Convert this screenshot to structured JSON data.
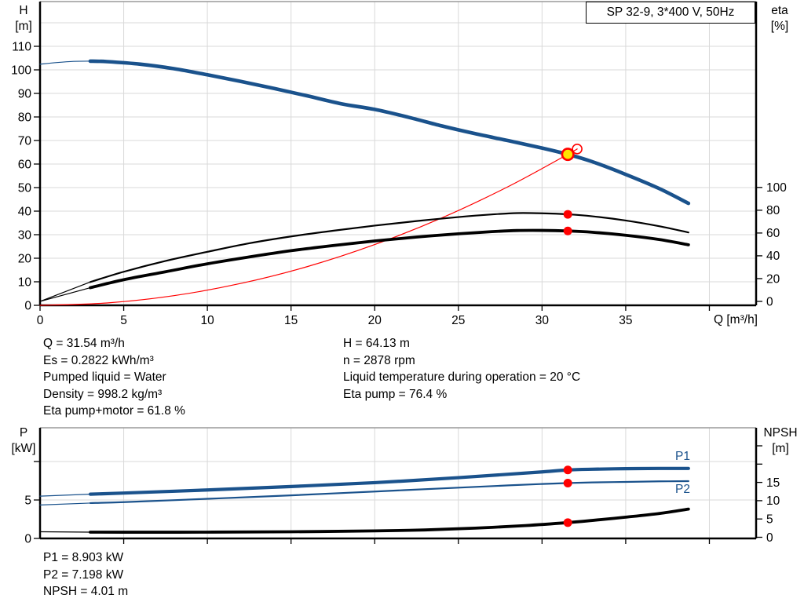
{
  "colors": {
    "curve_blue": "#1a528c",
    "black": "#000000",
    "red": "#ff0000",
    "yellow": "#ffe600",
    "grid": "#d9d9d9",
    "frame": "#9a9a9a"
  },
  "info_top": {
    "left": [
      "Q = 31.54 m³/h",
      "Es = 0.2822 kWh/m³",
      "Pumped liquid = Water",
      "Density = 998.2 kg/m³",
      "Eta pump+motor = 61.8 %"
    ],
    "right": [
      "H = 64.13 m",
      "n = 2878 rpm",
      "Liquid temperature during operation = 20 °C",
      "Eta pump = 76.4 %"
    ]
  },
  "info_bottom": [
    "P1 = 8.903 kW",
    "P2 = 7.198 kW",
    "NPSH = 4.01 m"
  ],
  "chart_data": [
    {
      "type": "line",
      "title": "SP 32-9, 3*400 V, 50Hz",
      "xlabel": "Q [m³/h]",
      "xlim": [
        0,
        42.8
      ],
      "x_ticks": [
        0,
        5,
        10,
        15,
        20,
        25,
        30,
        35,
        40
      ],
      "x_tick_labels": [
        0,
        5,
        10,
        15,
        20,
        25,
        30,
        35
      ],
      "left_axis": {
        "label": "H [m]",
        "label_lines": [
          "H",
          "[m]"
        ],
        "range": [
          0,
          129
        ],
        "ticks": [
          0,
          10,
          20,
          30,
          40,
          50,
          60,
          70,
          80,
          90,
          100,
          110
        ],
        "tick_labels": [
          0,
          10,
          20,
          30,
          40,
          50,
          60,
          70,
          80,
          90,
          100,
          110
        ]
      },
      "right_axis": {
        "label": "eta [%]",
        "label_lines": [
          "eta",
          "[%]"
        ],
        "range": [
          0,
          100
        ],
        "ticks": [
          0,
          20,
          40,
          60,
          80,
          100
        ],
        "tick_labels": [
          0,
          20,
          40,
          60,
          80,
          100
        ]
      },
      "series": [
        {
          "name": "system-curve",
          "label": "",
          "axis": "H",
          "color": "red",
          "width": 1.2,
          "points": [
            [
              0,
              0
            ],
            [
              4,
              1.0
            ],
            [
              8,
              4.1
            ],
            [
              12,
              9.3
            ],
            [
              16,
              16.5
            ],
            [
              20,
              25.8
            ],
            [
              24,
              37.1
            ],
            [
              28,
              50.5
            ],
            [
              31.54,
              64.13
            ],
            [
              32.1,
              66.4
            ]
          ]
        },
        {
          "name": "eta-pump",
          "label": "",
          "axis": "eta",
          "color": "black",
          "width": 2.2,
          "thin_below": 3,
          "points": [
            [
              0,
              0
            ],
            [
              3,
              17
            ],
            [
              5,
              26
            ],
            [
              7.5,
              35.5
            ],
            [
              10,
              43.5
            ],
            [
              12.5,
              51
            ],
            [
              15,
              57
            ],
            [
              17.5,
              62
            ],
            [
              20,
              66.5
            ],
            [
              22.5,
              70.5
            ],
            [
              25,
              74
            ],
            [
              27,
              76.3
            ],
            [
              28.5,
              77.5
            ],
            [
              30,
              77.3
            ],
            [
              31.54,
              76.4
            ],
            [
              33,
              74.7
            ],
            [
              35,
              71
            ],
            [
              37,
              66
            ],
            [
              38.75,
              60.5
            ]
          ]
        },
        {
          "name": "eta-pump-motor",
          "label": "",
          "axis": "eta",
          "color": "black",
          "width": 3.8,
          "thin_below": 3,
          "points": [
            [
              0,
              0
            ],
            [
              3,
              12
            ],
            [
              5,
              19
            ],
            [
              7.5,
              26
            ],
            [
              10,
              33
            ],
            [
              12.5,
              39
            ],
            [
              15,
              44.5
            ],
            [
              17.5,
              49
            ],
            [
              20,
              53
            ],
            [
              22.5,
              56.5
            ],
            [
              25,
              59.3
            ],
            [
              27,
              61.2
            ],
            [
              28.5,
              62.2
            ],
            [
              30,
              62.3
            ],
            [
              31.54,
              61.8
            ],
            [
              33,
              60.7
            ],
            [
              35,
              58
            ],
            [
              37,
              54.3
            ],
            [
              38.75,
              49.7
            ]
          ]
        },
        {
          "name": "head-curve",
          "label": "",
          "axis": "H",
          "color": "blue",
          "width": 4.6,
          "thin_below": 3,
          "points": [
            [
              0,
              102.4
            ],
            [
              1,
              103.1
            ],
            [
              2,
              103.6
            ],
            [
              3,
              103.7
            ],
            [
              4,
              103.5
            ],
            [
              6,
              102.4
            ],
            [
              8,
              100.5
            ],
            [
              10,
              97.9
            ],
            [
              12,
              95.1
            ],
            [
              14,
              92.1
            ],
            [
              16,
              88.9
            ],
            [
              18,
              85.6
            ],
            [
              20,
              83.2
            ],
            [
              22,
              79.9
            ],
            [
              24,
              76.2
            ],
            [
              26,
              72.9
            ],
            [
              28,
              69.9
            ],
            [
              30,
              66.8
            ],
            [
              31.54,
              64.13
            ],
            [
              33,
              61.0
            ],
            [
              35,
              55.6
            ],
            [
              37,
              49.6
            ],
            [
              38.75,
              43.3
            ]
          ]
        }
      ],
      "markers": [
        {
          "name": "duty-point-marker",
          "style": "yellow",
          "q": 31.54,
          "value": 64.13,
          "axis": "H"
        },
        {
          "name": "requested-duty-marker",
          "style": "open",
          "q": 32.1,
          "value": 66.4,
          "axis": "H"
        },
        {
          "name": "eta-pump-duty-dot",
          "style": "dot",
          "q": 31.54,
          "value": 76.4,
          "axis": "eta"
        },
        {
          "name": "eta-pump-motor-duty-dot",
          "style": "dot",
          "q": 31.54,
          "value": 61.8,
          "axis": "eta"
        }
      ]
    },
    {
      "type": "line",
      "title": "",
      "xlabel": "",
      "xlim": [
        0,
        42.8
      ],
      "x_ticks": [
        5,
        10,
        15,
        20,
        25,
        30,
        35,
        40
      ],
      "x_tick_labels": [],
      "left_axis": {
        "label": "P [kW]",
        "label_lines": [
          "P",
          "[kW]"
        ],
        "range": [
          0,
          14.4
        ],
        "ticks": [
          0,
          5,
          10
        ],
        "tick_labels": [
          0,
          5
        ]
      },
      "right_axis": {
        "label": "NPSH [m]",
        "label_lines": [
          "NPSH",
          "[m]"
        ],
        "range": [
          0,
          30
        ],
        "ticks": [
          0,
          5,
          10,
          15,
          20,
          25
        ],
        "tick_labels": [
          0,
          5,
          10,
          15
        ]
      },
      "series": [
        {
          "name": "npsh-curve",
          "label": "",
          "axis": "NPSH",
          "color": "black",
          "width": 3.8,
          "thin_below": 3,
          "points": [
            [
              0,
              1.5
            ],
            [
              3,
              1.4
            ],
            [
              5,
              1.38
            ],
            [
              10,
              1.4
            ],
            [
              15,
              1.5
            ],
            [
              20,
              1.75
            ],
            [
              23,
              2.0
            ],
            [
              26,
              2.5
            ],
            [
              29,
              3.2
            ],
            [
              31.54,
              4.01
            ],
            [
              33,
              4.6
            ],
            [
              35,
              5.5
            ],
            [
              37,
              6.5
            ],
            [
              38.75,
              7.7
            ]
          ]
        },
        {
          "name": "p2-curve",
          "label": "P2",
          "axis": "P",
          "color": "blue",
          "width": 2.2,
          "thin_below": 3,
          "points": [
            [
              0,
              4.35
            ],
            [
              3,
              4.6
            ],
            [
              5,
              4.72
            ],
            [
              10,
              5.15
            ],
            [
              15,
              5.6
            ],
            [
              20,
              6.1
            ],
            [
              25,
              6.6
            ],
            [
              28,
              6.9
            ],
            [
              30,
              7.08
            ],
            [
              31.54,
              7.198
            ],
            [
              33,
              7.28
            ],
            [
              35,
              7.35
            ],
            [
              37,
              7.42
            ],
            [
              38.75,
              7.45
            ]
          ]
        },
        {
          "name": "p1-curve",
          "label": "P1",
          "axis": "P",
          "color": "blue",
          "width": 4.2,
          "thin_below": 3,
          "points": [
            [
              0,
              5.5
            ],
            [
              3,
              5.75
            ],
            [
              5,
              5.9
            ],
            [
              10,
              6.3
            ],
            [
              15,
              6.75
            ],
            [
              20,
              7.25
            ],
            [
              25,
              7.9
            ],
            [
              28,
              8.35
            ],
            [
              30,
              8.65
            ],
            [
              31.54,
              8.903
            ],
            [
              33,
              9.0
            ],
            [
              35,
              9.07
            ],
            [
              37,
              9.1
            ],
            [
              38.75,
              9.1
            ]
          ]
        }
      ],
      "markers": [
        {
          "name": "p1-duty-dot",
          "style": "dot",
          "q": 31.54,
          "value": 8.903,
          "axis": "P"
        },
        {
          "name": "p2-duty-dot",
          "style": "dot",
          "q": 31.54,
          "value": 7.198,
          "axis": "P"
        },
        {
          "name": "npsh-duty-dot",
          "style": "dot",
          "q": 31.54,
          "value": 4.01,
          "axis": "NPSH"
        }
      ]
    }
  ]
}
